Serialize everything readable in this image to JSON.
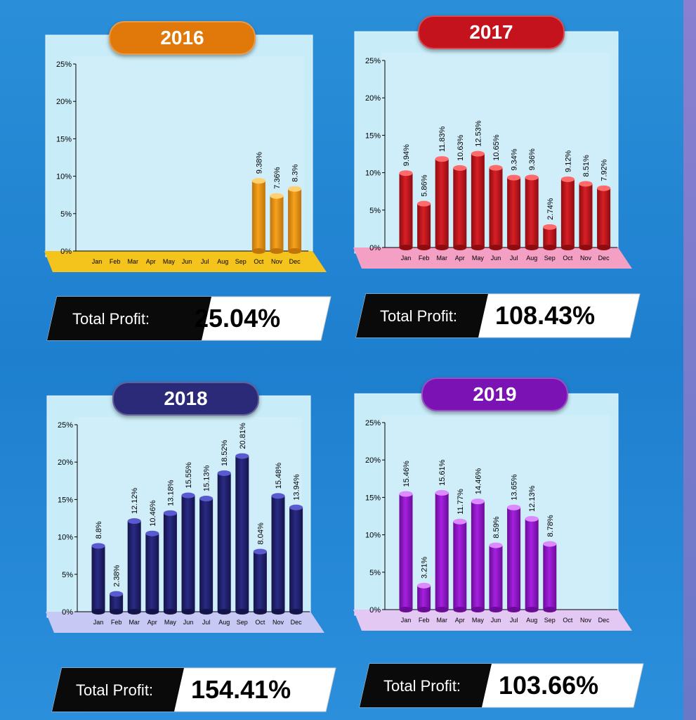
{
  "profit_label": "Total Profit:",
  "chart_data": [
    {
      "type": "bar",
      "title": "2016",
      "categories": [
        "Jan",
        "Feb",
        "Mar",
        "Apr",
        "May",
        "Jun",
        "Jul",
        "Aug",
        "Sep",
        "Oct",
        "Nov",
        "Dec"
      ],
      "values": [
        null,
        null,
        null,
        null,
        null,
        null,
        null,
        null,
        null,
        9.38,
        7.36,
        8.3
      ],
      "labels": [
        "",
        "",
        "",
        "",
        "",
        "",
        "",
        "",
        "",
        "9.38%",
        "7.36%",
        "8.3%"
      ],
      "ylim": [
        0,
        25
      ],
      "yticks": [
        "0%",
        "5%",
        "10%",
        "15%",
        "20%",
        "25%"
      ],
      "total_profit": "25.04%",
      "colors": {
        "pill": "#e0780a",
        "bar": "#f5a21c",
        "bar_dark": "#c0740c",
        "bar_top": "#ffd070",
        "floor": "#f4c31c"
      }
    },
    {
      "type": "bar",
      "title": "2017",
      "categories": [
        "Jan",
        "Feb",
        "Mar",
        "Apr",
        "May",
        "Jun",
        "Jul",
        "Aug",
        "Sep",
        "Oct",
        "Nov",
        "Dec"
      ],
      "values": [
        9.94,
        5.86,
        11.83,
        10.63,
        12.53,
        10.65,
        9.34,
        9.36,
        2.74,
        9.12,
        8.51,
        7.92
      ],
      "labels": [
        "9.94%",
        "5.86%",
        "11.83%",
        "10.63%",
        "12.53%",
        "10.65%",
        "9.34%",
        "9.36%",
        "2.74%",
        "9.12%",
        "8.51%",
        "7.92%"
      ],
      "ylim": [
        0,
        25
      ],
      "yticks": [
        "0%",
        "5%",
        "10%",
        "15%",
        "20%",
        "25%"
      ],
      "total_profit": "108.43%",
      "colors": {
        "pill": "#c4131c",
        "bar": "#d81f26",
        "bar_dark": "#8e0c10",
        "bar_top": "#ff6a6a",
        "floor": "#f4a0c4"
      }
    },
    {
      "type": "bar",
      "title": "2018",
      "categories": [
        "Jan",
        "Feb",
        "Mar",
        "Apr",
        "May",
        "Jun",
        "Jul",
        "Aug",
        "Sep",
        "Oct",
        "Nov",
        "Dec"
      ],
      "values": [
        8.8,
        2.38,
        12.12,
        10.46,
        13.18,
        15.55,
        15.13,
        18.52,
        20.81,
        8.04,
        15.48,
        13.94
      ],
      "labels": [
        "8.8%",
        "2.38%",
        "12.12%",
        "10.46%",
        "13.18%",
        "15.55%",
        "15.13%",
        "18.52%",
        "20.81%",
        "8.04%",
        "15.48%",
        "13.94%"
      ],
      "ylim": [
        0,
        25
      ],
      "yticks": [
        "0%",
        "5%",
        "10%",
        "15%",
        "20%",
        "25%"
      ],
      "total_profit": "154.41%",
      "colors": {
        "pill": "#2b2a78",
        "bar": "#2a2a86",
        "bar_dark": "#14144a",
        "bar_top": "#5a5ad0",
        "floor": "#c8c8f4"
      }
    },
    {
      "type": "bar",
      "title": "2019",
      "categories": [
        "Jan",
        "Feb",
        "Mar",
        "Apr",
        "May",
        "Jun",
        "Jul",
        "Aug",
        "Sep",
        "Oct",
        "Nov",
        "Dec"
      ],
      "values": [
        15.46,
        3.21,
        15.61,
        11.77,
        14.46,
        8.59,
        13.65,
        12.13,
        8.78,
        null,
        null,
        null
      ],
      "labels": [
        "15.46%",
        "3.21%",
        "15.61%",
        "11.77%",
        "14.46%",
        "8.59%",
        "13.65%",
        "12.13%",
        "8.78%",
        "",
        "",
        ""
      ],
      "ylim": [
        0,
        25
      ],
      "yticks": [
        "0%",
        "5%",
        "10%",
        "15%",
        "20%",
        "25%"
      ],
      "total_profit": "103.66%",
      "colors": {
        "pill": "#7a12b4",
        "bar": "#a620e0",
        "bar_dark": "#6a0c98",
        "bar_top": "#de8aff",
        "floor": "#e4c8f4"
      }
    }
  ]
}
